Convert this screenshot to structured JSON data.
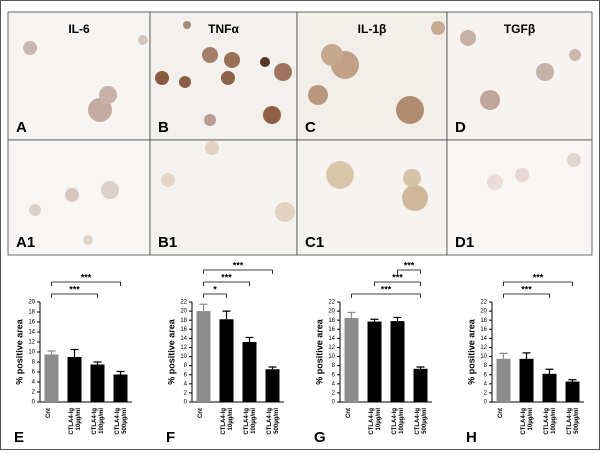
{
  "panels": [
    {
      "stain": "IL-6",
      "letter": "A"
    },
    {
      "stain": "TNFα",
      "letter": "B"
    },
    {
      "stain": "IL-1β",
      "letter": "C"
    },
    {
      "stain": "TGFβ",
      "letter": "D"
    },
    {
      "letter": "A1"
    },
    {
      "letter": "B1"
    },
    {
      "letter": "C1"
    },
    {
      "letter": "D1"
    }
  ],
  "chart_data": [
    {
      "type": "bar",
      "panel": "E",
      "ylabel": "% positive area",
      "categories": [
        [
          "Cnt"
        ],
        [
          "CTLA4-Ig",
          "10µg/ml"
        ],
        [
          "CTLA4-Ig",
          "100µg/ml"
        ],
        [
          "CTLA4-Ig",
          "500µg/ml"
        ]
      ],
      "values": [
        9.5,
        9,
        7.5,
        5.5
      ],
      "errors": [
        0.7,
        1.5,
        0.5,
        0.6
      ],
      "colors": [
        "#8c8c8c",
        "#000000",
        "#000000",
        "#000000"
      ],
      "ylim": [
        0,
        20
      ],
      "yticks": [
        0,
        2,
        4,
        6,
        8,
        10,
        12,
        14,
        16,
        18,
        20
      ],
      "annotations": [
        "***",
        "***"
      ]
    },
    {
      "type": "bar",
      "panel": "F",
      "ylabel": "% positive area",
      "categories": [
        [
          "Cnt"
        ],
        [
          "CTLA4-Ig",
          "10µg/ml"
        ],
        [
          "CTLA4-Ig",
          "100µg/ml"
        ],
        [
          "CTLA4-Ig",
          "500µg/ml"
        ]
      ],
      "values": [
        20,
        18.2,
        13.2,
        7.2
      ],
      "errors": [
        1.5,
        1.8,
        1,
        0.5
      ],
      "colors": [
        "#8c8c8c",
        "#000000",
        "#000000",
        "#000000"
      ],
      "ylim": [
        0,
        22
      ],
      "yticks": [
        0,
        2,
        4,
        6,
        8,
        10,
        12,
        14,
        16,
        18,
        20,
        22
      ],
      "annotations": [
        "*",
        "***",
        "***"
      ]
    },
    {
      "type": "bar",
      "panel": "G",
      "ylabel": "% positive area",
      "categories": [
        [
          "Cnt"
        ],
        [
          "CTLA4-Ig",
          "10µg/ml"
        ],
        [
          "CTLA4-Ig",
          "100µg/ml"
        ],
        [
          "CTLA4-Ig",
          "500µg/ml"
        ]
      ],
      "values": [
        18.5,
        17.7,
        17.8,
        7.3
      ],
      "errors": [
        1.2,
        0.5,
        0.8,
        0.4
      ],
      "colors": [
        "#8c8c8c",
        "#000000",
        "#000000",
        "#000000"
      ],
      "ylim": [
        0,
        22
      ],
      "yticks": [
        0,
        2,
        4,
        6,
        8,
        10,
        12,
        14,
        16,
        18,
        20,
        22
      ],
      "annotations": [
        "***",
        "***",
        "***"
      ]
    },
    {
      "type": "bar",
      "panel": "H",
      "ylabel": "% positive area",
      "categories": [
        [
          "Cnt"
        ],
        [
          "CTLA4-Ig",
          "10µg/ml"
        ],
        [
          "CTLA4-Ig",
          "100µg/ml"
        ],
        [
          "CTLA4-Ig",
          "500µg/ml"
        ]
      ],
      "values": [
        9.5,
        9.5,
        6.2,
        4.5
      ],
      "errors": [
        1.2,
        1.3,
        1,
        0.4
      ],
      "colors": [
        "#8c8c8c",
        "#000000",
        "#000000",
        "#000000"
      ],
      "ylim": [
        0,
        22
      ],
      "yticks": [
        0,
        2,
        4,
        6,
        8,
        10,
        12,
        14,
        16,
        18,
        20,
        22
      ],
      "annotations": [
        "***",
        "***"
      ]
    }
  ]
}
